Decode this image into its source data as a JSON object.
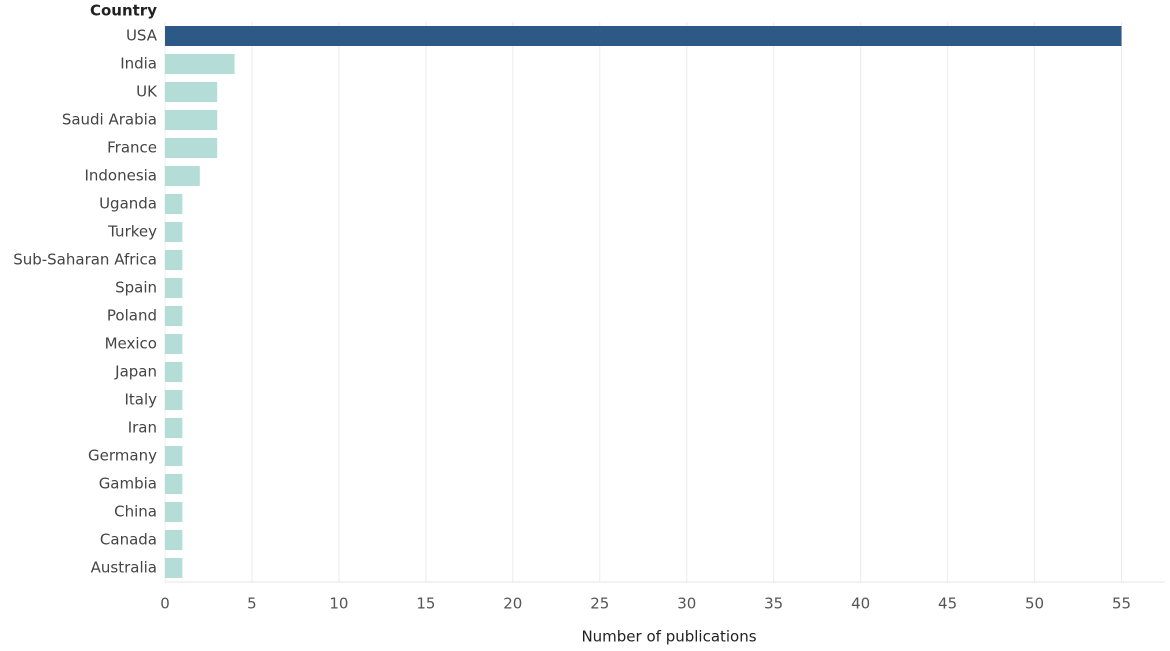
{
  "chart_data": {
    "type": "barh",
    "y_label": "Country",
    "x_label": "Number of publications",
    "categories": [
      "USA",
      "India",
      "UK",
      "Saudi Arabia",
      "France",
      "Indonesia",
      "Uganda",
      "Turkey",
      "Sub-Saharan Africa",
      "Spain",
      "Poland",
      "Mexico",
      "Japan",
      "Italy",
      "Iran",
      "Germany",
      "Gambia",
      "China",
      "Canada",
      "Australia"
    ],
    "values": [
      55,
      4,
      3,
      3,
      3,
      2,
      1,
      1,
      1,
      1,
      1,
      1,
      1,
      1,
      1,
      1,
      1,
      1,
      1,
      1
    ],
    "colors": [
      "#2d5986",
      "#b3ddd6",
      "#b3ddd6",
      "#b3ddd6",
      "#b3ddd6",
      "#b3ddd6",
      "#b3ddd6",
      "#b3ddd6",
      "#b3ddd6",
      "#b3ddd6",
      "#b3ddd6",
      "#b3ddd6",
      "#b3ddd6",
      "#b3ddd6",
      "#b3ddd6",
      "#b3ddd6",
      "#b3ddd6",
      "#b3ddd6",
      "#b3ddd6",
      "#b3ddd6"
    ],
    "xlim": [
      0,
      57.5
    ],
    "xticks": [
      0,
      5,
      10,
      15,
      20,
      25,
      30,
      35,
      40,
      45,
      50,
      55
    ],
    "grid": true
  }
}
